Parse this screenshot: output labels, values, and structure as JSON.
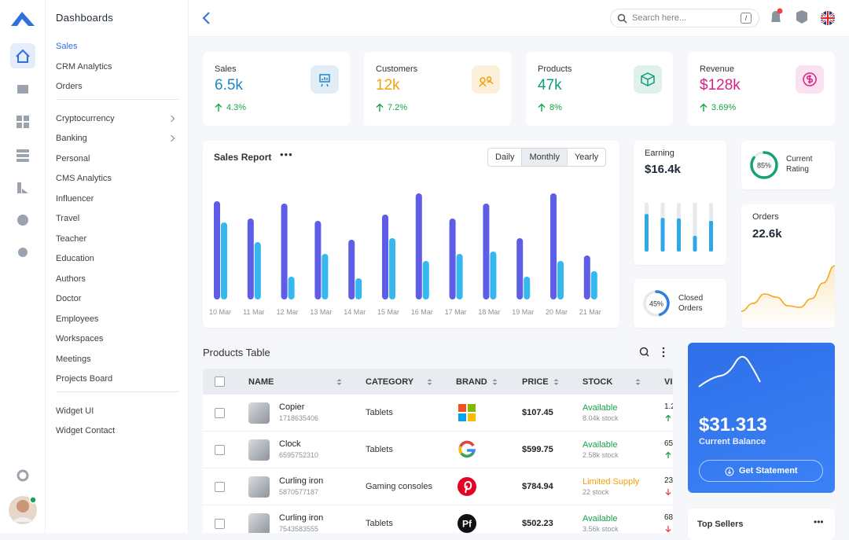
{
  "sidebar": {
    "title": "Dashboards",
    "groups": [
      [
        "Sales",
        "CRM Analytics",
        "Orders"
      ],
      [
        "Cryptocurrency",
        "Banking",
        "Personal",
        "CMS Analytics",
        "Influencer",
        "Travel",
        "Teacher",
        "Education",
        "Authors",
        "Doctor",
        "Employees",
        "Workspaces",
        "Meetings",
        "Projects Board"
      ],
      [
        "Widget UI",
        "Widget Contact"
      ]
    ]
  },
  "search": {
    "placeholder": "Search here...",
    "shortcut": "/"
  },
  "stats": [
    {
      "label": "Sales",
      "value": "6.5k",
      "change": "4.3%",
      "color": "#1f86c9",
      "bg": "#e2eef7"
    },
    {
      "label": "Customers",
      "value": "12k",
      "change": "7.2%",
      "color": "#f5a00c",
      "bg": "#fdf0db"
    },
    {
      "label": "Products",
      "value": "47k",
      "change": "8%",
      "color": "#119b7b",
      "bg": "#e0f1ec"
    },
    {
      "label": "Revenue",
      "value": "$128k",
      "change": "3.69%",
      "color": "#d8218b",
      "bg": "#fbe2f1"
    }
  ],
  "sales_report": {
    "title": "Sales Report",
    "tabs": [
      "Daily",
      "Monthly",
      "Yearly"
    ],
    "active_tab": 1,
    "chart_data": {
      "type": "bar",
      "categories": [
        "10 Mar",
        "11 Mar",
        "12 Mar",
        "13 Mar",
        "14 Mar",
        "15 Mar",
        "16 Mar",
        "17 Mar",
        "18 Mar",
        "19 Mar",
        "20 Mar",
        "21 Mar"
      ],
      "series": [
        {
          "color": "#5f5ce8",
          "values": [
            125,
            103,
            122,
            100,
            76,
            108,
            135,
            103,
            122,
            78,
            135,
            56
          ]
        },
        {
          "color": "#35b7ef",
          "values": [
            98,
            73,
            29,
            58,
            27,
            78,
            49,
            58,
            61,
            29,
            49,
            36
          ]
        }
      ]
    }
  },
  "earning": {
    "label": "Earning",
    "value": "$16.4k",
    "chart_data": {
      "type": "bar",
      "values": [
        77,
        69,
        68,
        32,
        63
      ],
      "color": "#2fa8e8",
      "track": "#e6e9ee"
    }
  },
  "closed_orders": {
    "label": "Closed Orders",
    "chart_data": {
      "type": "donut",
      "values": [
        45
      ],
      "value_labels": [
        "45%"
      ],
      "color": "#2f7fe0"
    }
  },
  "rating": {
    "label": "Current Rating",
    "chart_data": {
      "type": "donut",
      "values": [
        85
      ],
      "value_labels": [
        "85%"
      ],
      "color": "#16a36c"
    }
  },
  "orders": {
    "label": "Orders",
    "value": "22.6k",
    "chart_data": {
      "type": "area",
      "values": [
        4,
        14,
        26,
        22,
        11,
        9,
        20,
        40,
        62
      ],
      "color": "#f2a81d"
    }
  },
  "table": {
    "title": "Products Table",
    "columns": [
      "NAME",
      "CATEGORY",
      "BRAND",
      "PRICE",
      "STOCK",
      "VI"
    ],
    "rows": [
      {
        "name": "Copier",
        "sku": "1718635406",
        "category": "Tablets",
        "brand": "microsoft",
        "price": "$107.45",
        "stock": "Available",
        "stock_count": "8.04k stock",
        "views": "1.2"
      },
      {
        "name": "Clock",
        "sku": "6595752310",
        "category": "Tablets",
        "brand": "google",
        "price": "$599.75",
        "stock": "Available",
        "stock_count": "2.58k stock",
        "views": "65"
      },
      {
        "name": "Curling iron",
        "sku": "5870577187",
        "category": "Gaming consoles",
        "brand": "pinterest",
        "price": "$784.94",
        "stock": "Limited Supply",
        "stock_count": "22 stock",
        "views": "23"
      },
      {
        "name": "Curling iron",
        "sku": "7543583555",
        "category": "Tablets",
        "brand": "Pf",
        "price": "$502.23",
        "stock": "Available",
        "stock_count": "3.56k stock",
        "views": "68"
      }
    ]
  },
  "balance": {
    "value": "$31.313",
    "label": "Current Balance",
    "button": "Get Statement"
  },
  "top_sellers": {
    "title": "Top Sellers"
  }
}
